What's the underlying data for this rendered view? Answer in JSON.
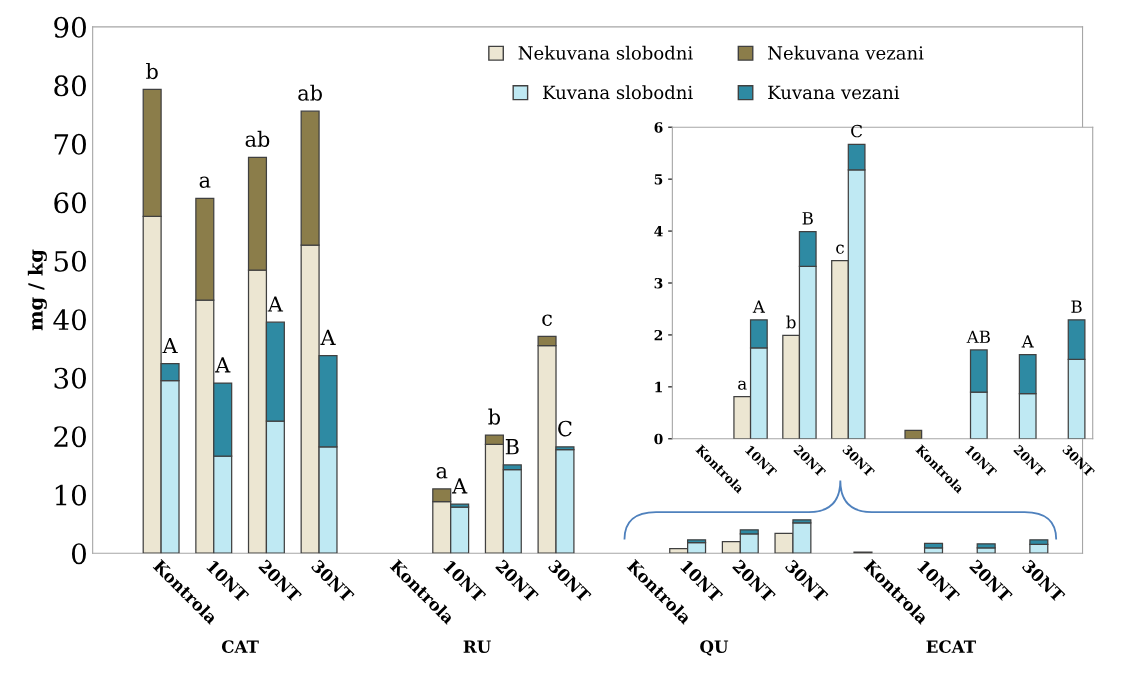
{
  "chart_data": [
    {
      "type": "bar",
      "stacked": true,
      "ylabel": "mg / kg",
      "ylim": [
        0,
        90
      ],
      "yticks": [
        0,
        10,
        20,
        30,
        40,
        50,
        60,
        70,
        80,
        90
      ],
      "legend": "top",
      "categories": [
        "Kontrola",
        "10NT",
        "20NT",
        "30NT",
        "Kontrola",
        "10NT",
        "20NT",
        "30NT",
        "Kontrola",
        "10NT",
        "20NT",
        "30NT",
        "Kontrola",
        "10NT",
        "20NT",
        "30NT"
      ],
      "annotations": [
        "CAT",
        "RU",
        "QU",
        "ECAT"
      ],
      "series": [
        {
          "name": "Nekuvana slobodni",
          "color": "#ece6d2",
          "values": [
            57.6,
            43.3,
            48.4,
            52.7,
            null,
            8.8,
            18.6,
            35.5,
            null,
            0.8,
            2.0,
            3.4,
            null,
            null,
            null,
            null
          ],
          "value_labels": [
            null,
            null,
            null,
            null,
            null,
            null,
            null,
            null,
            null,
            null,
            null,
            null,
            null,
            null,
            null,
            null
          ]
        },
        {
          "name": "Nekuvana vezani",
          "color": "#8b7d4a",
          "values": [
            21.7,
            17.4,
            19.3,
            22.9,
            null,
            2.2,
            1.6,
            1.6,
            null,
            null,
            null,
            null,
            0.2,
            null,
            null,
            null
          ],
          "value_labels": [
            "b",
            "a",
            "ab",
            "ab",
            null,
            "a",
            "b",
            "c",
            null,
            null,
            null,
            null,
            null,
            null,
            null,
            null
          ]
        }
      ]
    },
    {
      "type": "bar",
      "stacked": true,
      "ylim": [
        0,
        90
      ],
      "tick_labels": false,
      "legend": "top",
      "categories": [
        null,
        null,
        null,
        null,
        null,
        null,
        null,
        null,
        null,
        null,
        null,
        null,
        null,
        null,
        null,
        null
      ],
      "series": [
        {
          "name": "Kuvana slobodni",
          "color": "#bfe9f3",
          "values": [
            29.5,
            16.6,
            22.6,
            18.2,
            null,
            7.9,
            14.3,
            17.7,
            null,
            1.8,
            3.3,
            5.2,
            null,
            0.9,
            0.9,
            1.5
          ]
        },
        {
          "name": "Kuvana vezani",
          "color": "#2e8aa3",
          "values": [
            2.9,
            12.5,
            16.9,
            15.6,
            null,
            0.5,
            0.8,
            0.5,
            null,
            0.5,
            0.7,
            0.5,
            null,
            0.8,
            0.7,
            0.8
          ],
          "value_labels": [
            "A",
            "A",
            "A",
            "A",
            null,
            "A",
            "B",
            "C",
            null,
            null,
            null,
            null,
            null,
            null,
            null,
            null
          ]
        }
      ]
    },
    {
      "type": "bar",
      "stacked": true,
      "ylim": [
        0,
        6
      ],
      "yticks": [
        0,
        1,
        2,
        3,
        4,
        5,
        6
      ],
      "categories": [
        "Kontrola",
        "10NT",
        "20NT",
        "30NT",
        "Kontrola",
        "10NT",
        "20NT",
        "30NT"
      ],
      "series": [
        {
          "color": "#ece6d2",
          "values": [
            null,
            0.81,
            1.99,
            3.43,
            null,
            null,
            null,
            null
          ],
          "value_labels": [
            null,
            "a",
            "b",
            "c",
            null,
            null,
            null,
            null
          ]
        },
        {
          "color": "#8b7d4a",
          "values": [
            null,
            null,
            null,
            null,
            0.16,
            null,
            null,
            null
          ]
        }
      ]
    },
    {
      "type": "bar",
      "stacked": true,
      "ylim": [
        0,
        6
      ],
      "tick_labels": false,
      "categories": [
        null,
        null,
        null,
        null,
        null,
        null,
        null,
        null
      ],
      "series": [
        {
          "color": "#bfe9f3",
          "values": [
            null,
            1.75,
            3.32,
            5.18,
            null,
            0.9,
            0.87,
            1.53
          ]
        },
        {
          "color": "#2e8aa3",
          "values": [
            null,
            0.54,
            0.67,
            0.49,
            null,
            0.81,
            0.75,
            0.76
          ],
          "value_labels": [
            null,
            "A",
            "B",
            "C",
            null,
            "AB",
            "A",
            "B"
          ]
        }
      ]
    }
  ]
}
